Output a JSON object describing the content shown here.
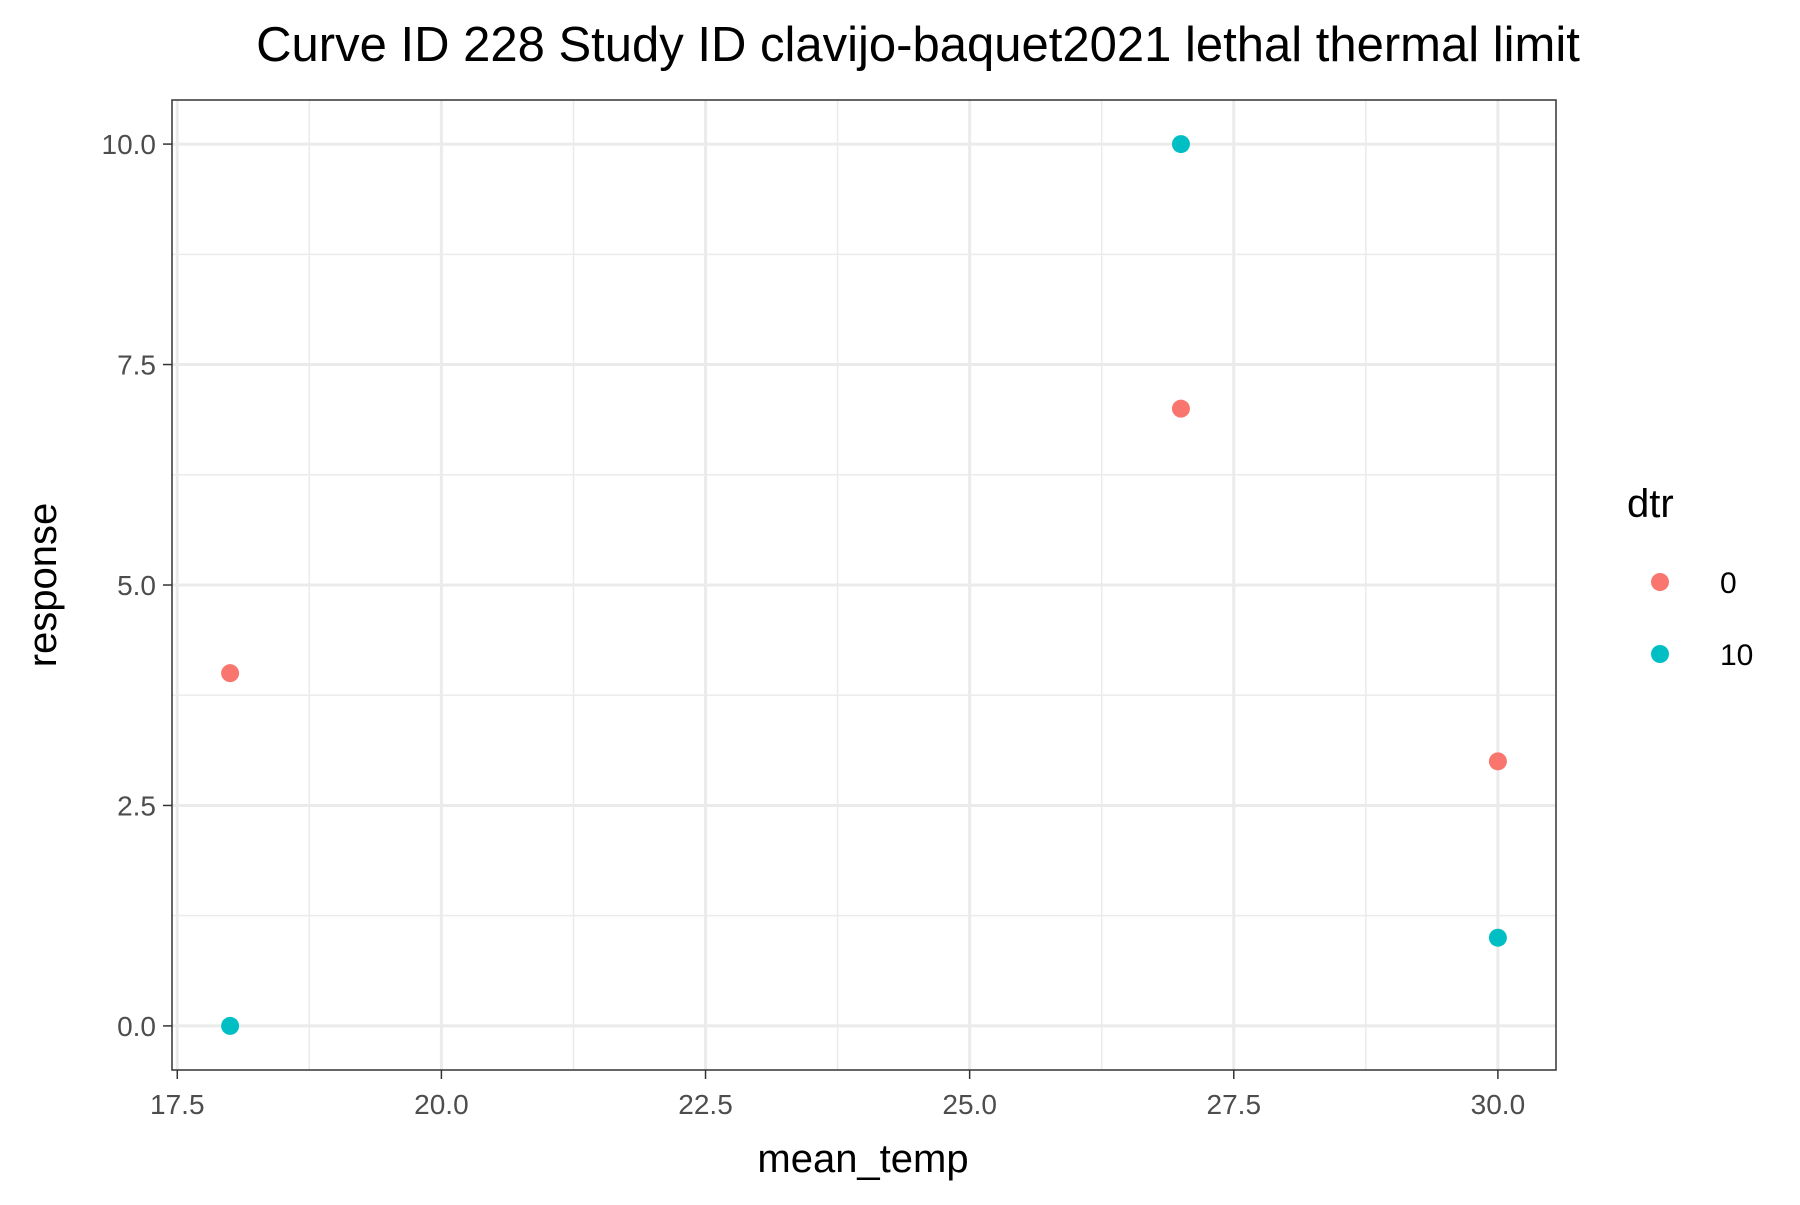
{
  "chart_data": {
    "type": "scatter",
    "title": "Curve ID 228 Study ID clavijo-baquet2021 lethal thermal limit",
    "xlabel": "mean_temp",
    "ylabel": "response",
    "xlim": [
      17.45,
      30.55
    ],
    "ylim": [
      -0.5,
      10.5
    ],
    "x_ticks": [
      17.5,
      20.0,
      22.5,
      25.0,
      27.5,
      30.0
    ],
    "x_tick_labels": [
      "17.5",
      "20.0",
      "22.5",
      "25.0",
      "27.5",
      "30.0"
    ],
    "y_ticks": [
      0.0,
      2.5,
      5.0,
      7.5,
      10.0
    ],
    "y_tick_labels": [
      "0.0",
      "2.5",
      "5.0",
      "7.5",
      "10.0"
    ],
    "grid": true,
    "legend": {
      "title": "dtr",
      "placement": "right"
    },
    "series": [
      {
        "name": "0",
        "color": "#F8766D",
        "points": [
          {
            "x": 18,
            "y": 4
          },
          {
            "x": 27,
            "y": 7
          },
          {
            "x": 30,
            "y": 3
          }
        ]
      },
      {
        "name": "10",
        "color": "#00BFC4",
        "points": [
          {
            "x": 18,
            "y": 0
          },
          {
            "x": 27,
            "y": 10
          },
          {
            "x": 30,
            "y": 1
          }
        ]
      }
    ]
  }
}
